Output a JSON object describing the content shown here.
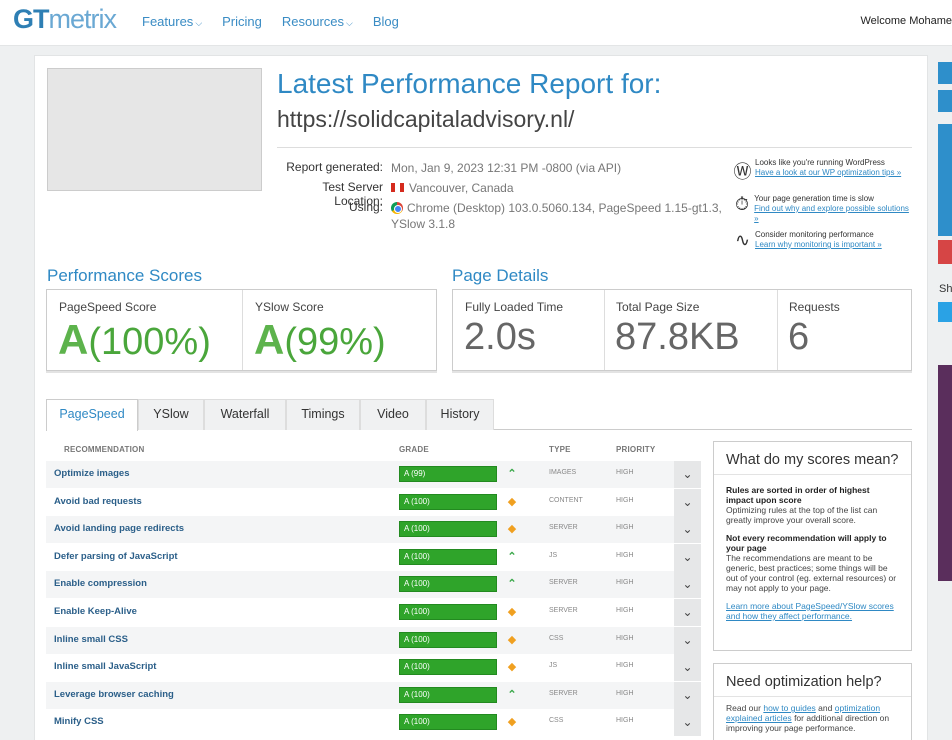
{
  "header": {
    "logo_gt": "GT",
    "logo_metrix": "metrix",
    "nav": [
      {
        "label": "Features",
        "dropdown": true
      },
      {
        "label": "Pricing",
        "dropdown": false
      },
      {
        "label": "Resources",
        "dropdown": true
      },
      {
        "label": "Blog",
        "dropdown": false
      }
    ],
    "welcome": "Welcome Mohame"
  },
  "report": {
    "title": "Latest Performance Report for:",
    "url": "https://solidcapitaladvisory.nl/",
    "generated_label": "Report generated:",
    "generated_value": "Mon, Jan 9, 2023 12:31 PM -0800 (via API)",
    "location_label": "Test Server Location:",
    "location_value": "Vancouver, Canada",
    "using_label": "Using:",
    "using_value": "Chrome (Desktop) 103.0.5060.134, PageSpeed 1.15-gt1.3, YSlow 3.1.8"
  },
  "tips": [
    {
      "icon": "wordpress-icon",
      "text": "Looks like you're running WordPress",
      "link": "Have a look at our WP optimization tips »"
    },
    {
      "icon": "stopwatch-icon",
      "text": "Your page generation time is slow",
      "link": "Find out why and explore possible solutions »"
    },
    {
      "icon": "pulse-icon",
      "text": "Consider monitoring performance",
      "link": "Learn why monitoring is important »"
    }
  ],
  "scores": {
    "heading": "Performance Scores",
    "pagespeed": {
      "label": "PageSpeed Score",
      "grade": "A",
      "percent": "(100%)"
    },
    "yslow": {
      "label": "YSlow Score",
      "grade": "A",
      "percent": "(99%)"
    }
  },
  "details": {
    "heading": "Page Details",
    "items": [
      {
        "label": "Fully Loaded Time",
        "value": "2.0s"
      },
      {
        "label": "Total Page Size",
        "value": "87.8KB"
      },
      {
        "label": "Requests",
        "value": "6"
      }
    ]
  },
  "tabs": [
    "PageSpeed",
    "YSlow",
    "Waterfall",
    "Timings",
    "Video",
    "History"
  ],
  "active_tab": "PageSpeed",
  "table": {
    "headers": {
      "recommendation": "RECOMMENDATION",
      "grade": "GRADE",
      "type": "TYPE",
      "priority": "PRIORITY"
    },
    "rows": [
      {
        "name": "Optimize images",
        "grade": "A (99)",
        "trend": "up",
        "type": "IMAGES",
        "priority": "HIGH"
      },
      {
        "name": "Avoid bad requests",
        "grade": "A (100)",
        "trend": "diamond",
        "type": "CONTENT",
        "priority": "HIGH"
      },
      {
        "name": "Avoid landing page redirects",
        "grade": "A (100)",
        "trend": "diamond",
        "type": "SERVER",
        "priority": "HIGH"
      },
      {
        "name": "Defer parsing of JavaScript",
        "grade": "A (100)",
        "trend": "up",
        "type": "JS",
        "priority": "HIGH"
      },
      {
        "name": "Enable compression",
        "grade": "A (100)",
        "trend": "up",
        "type": "SERVER",
        "priority": "HIGH"
      },
      {
        "name": "Enable Keep-Alive",
        "grade": "A (100)",
        "trend": "diamond",
        "type": "SERVER",
        "priority": "HIGH"
      },
      {
        "name": "Inline small CSS",
        "grade": "A (100)",
        "trend": "diamond",
        "type": "CSS",
        "priority": "HIGH"
      },
      {
        "name": "Inline small JavaScript",
        "grade": "A (100)",
        "trend": "diamond",
        "type": "JS",
        "priority": "HIGH"
      },
      {
        "name": "Leverage browser caching",
        "grade": "A (100)",
        "trend": "up",
        "type": "SERVER",
        "priority": "HIGH"
      },
      {
        "name": "Minify CSS",
        "grade": "A (100)",
        "trend": "diamond",
        "type": "CSS",
        "priority": "HIGH"
      }
    ]
  },
  "scores_help": {
    "title": "What do my scores mean?",
    "p1_bold": "Rules are sorted in order of highest impact upon score",
    "p1": "Optimizing rules at the top of the list can greatly improve your overall score.",
    "p2_bold": "Not every recommendation will apply to your page",
    "p2": "The recommendations are meant to be generic, best practices; some things will be out of your control (eg. external resources) or may not apply to your page.",
    "link": "Learn more about PageSpeed/YSlow scores and how they affect performance."
  },
  "optimization_help": {
    "title": "Need optimization help?",
    "text_a": "Read our",
    "link_a": "how to guides",
    "text_b": "and",
    "link_b": "optimization explained articles",
    "text_c": "for additional direction on improving your page performance."
  },
  "sidebar": {
    "share_label": "Sh"
  }
}
